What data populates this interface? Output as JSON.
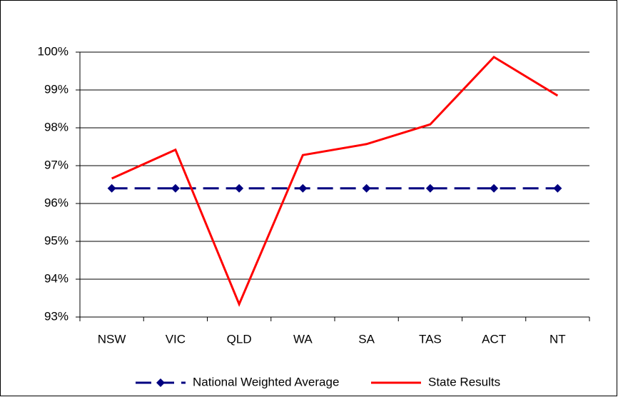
{
  "chart_data": {
    "type": "line",
    "categories": [
      "NSW",
      "VIC",
      "QLD",
      "WA",
      "SA",
      "TAS",
      "ACT",
      "NT"
    ],
    "series": [
      {
        "name": "National Weighted Average",
        "color": "#000080",
        "values": [
          96.4,
          96.4,
          96.4,
          96.4,
          96.4,
          96.4,
          96.4,
          96.4
        ]
      },
      {
        "name": "State Results",
        "color": "#ff0000",
        "values": [
          96.66,
          97.42,
          93.34,
          97.28,
          97.57,
          98.09,
          99.87,
          98.85
        ]
      }
    ],
    "ylim": [
      93,
      100
    ],
    "yticks": [
      {
        "value": 93,
        "label": "93%"
      },
      {
        "value": 94,
        "label": "94%"
      },
      {
        "value": 95,
        "label": "95%"
      },
      {
        "value": 96,
        "label": "96%"
      },
      {
        "value": 97,
        "label": "97%"
      },
      {
        "value": 98,
        "label": "98%"
      },
      {
        "value": 99,
        "label": "99%"
      },
      {
        "value": 100,
        "label": "100%"
      }
    ],
    "grid": true
  }
}
